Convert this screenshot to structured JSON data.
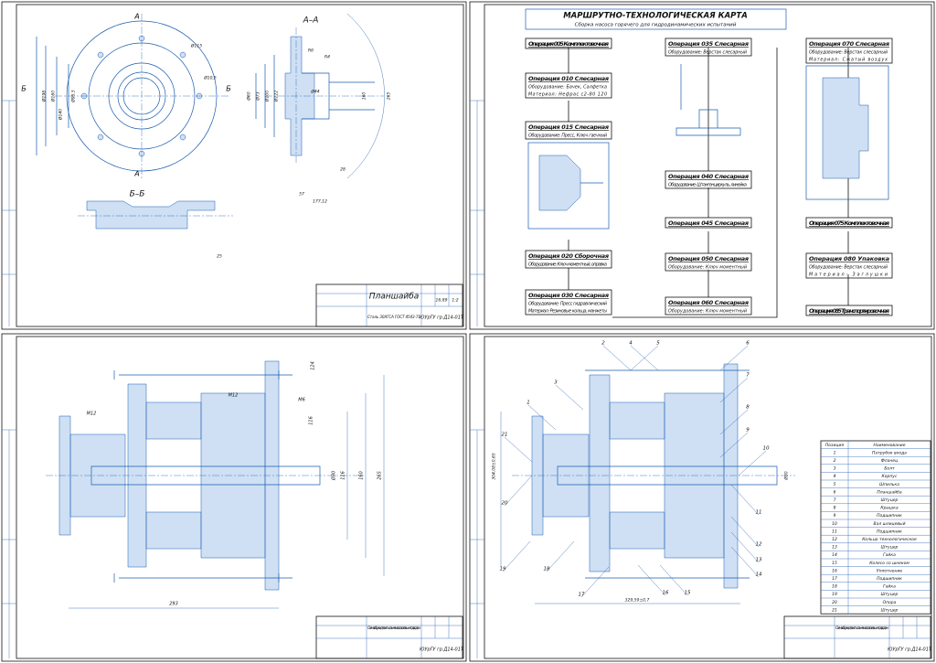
{
  "sheets": [
    {
      "section_labels": [
        "А",
        "А",
        "Б",
        "Б",
        "А–А",
        "Б–Б"
      ],
      "dimensions": [
        "Ø115",
        "Ø10,5",
        "Ø198",
        "Ø160",
        "Ø95,5",
        "Ø140",
        "R6",
        "R4",
        "Ø122",
        "Ø100",
        "Ø73",
        "Ø60",
        "Ø44",
        "160",
        "265",
        "177,12",
        "57",
        "28",
        "25"
      ],
      "title_block": {
        "name": "Планшайба",
        "material": "Сталь 30ХГСА  ГОСТ 4543-71",
        "code": "ЮУрГУ гр.Д14-01Т",
        "mass": "16,89",
        "scale": "1:2"
      }
    },
    {
      "title": "МАРШРУТНО-ТЕХНОЛОГИЧЕСКАЯ КАРТА",
      "subtitle": "Сборка насоса горячего для гидродинамических испытаний",
      "operations": [
        {
          "title": "Операция 005 Комплектовочная",
          "lines": []
        },
        {
          "title": "Операция 010 Слесарная",
          "lines": [
            "Оборудование: Бачек, Салфетка",
            "Материал: Нефрас с2-80 120"
          ]
        },
        {
          "title": "Операция 015 Слесарная",
          "lines": [
            "Оборудование: Пресс, Ключ гаечный"
          ]
        },
        {
          "title": "Операция 020 Сборочная",
          "lines": [
            "Оборудование: Ключ моментный, оправка"
          ]
        },
        {
          "title": "Операция 030 Слесарная",
          "lines": [
            "Оборудование: Пресс гидравлический",
            "Материал: Резиновые кольца, манжеты"
          ]
        },
        {
          "title": "Операция 035 Слесарная",
          "lines": [
            "Оборудование: Верстак слесарный"
          ]
        },
        {
          "title": "Операция 040 Слесарная",
          "lines": [
            "Оборудование: Штангенциркуль, линейка"
          ]
        },
        {
          "title": "Операция 045 Слесарная",
          "lines": []
        },
        {
          "title": "Операция 050 Слесарная",
          "lines": [
            "Оборудование: Ключ моментный"
          ]
        },
        {
          "title": "Операция 060 Слесарная",
          "lines": [
            "Оборудование: Ключ моментный"
          ]
        },
        {
          "title": "Операция 070 Слесарная",
          "lines": [
            "Оборудование: Верстак слесарный",
            "Материал: Сжатый воздух"
          ]
        },
        {
          "title": "Операция 075 Комплектовочная",
          "lines": []
        },
        {
          "title": "Операция 080 Упаковка",
          "lines": [
            "Оборудование: Верстак слесарный",
            "Материал: Заглушки"
          ]
        },
        {
          "title": "Операция 085 Транспортировочная",
          "lines": []
        }
      ]
    },
    {
      "dimensions": [
        "М12",
        "М12",
        "М6",
        "116",
        "Ø30",
        "116",
        "160",
        "265",
        "293",
        "124"
      ],
      "title_block": {
        "name": "Схема сборки для испытания насоса с осевым подводом",
        "code": "ЮУрГУ гр.Д14-01Т"
      }
    },
    {
      "callouts": [
        "1",
        "2",
        "3",
        "4",
        "5",
        "6",
        "7",
        "8",
        "9",
        "10",
        "11",
        "12",
        "13",
        "14",
        "15",
        "16",
        "17",
        "18",
        "19",
        "20",
        "21"
      ],
      "dimensions": [
        "Ø30",
        "329,59±0,7",
        "304,08±0,65"
      ],
      "parts_table": {
        "header": [
          "Позиция",
          "Наименование"
        ],
        "rows": [
          [
            1,
            "Патрубок входа"
          ],
          [
            2,
            "Фланец"
          ],
          [
            3,
            "Болт"
          ],
          [
            4,
            "Корпус"
          ],
          [
            5,
            "Шпилька"
          ],
          [
            6,
            "Планшайба"
          ],
          [
            7,
            "Штуцер"
          ],
          [
            8,
            "Крышка"
          ],
          [
            9,
            "Подшипник"
          ],
          [
            10,
            "Вал шлицевый"
          ],
          [
            11,
            "Подшипник"
          ],
          [
            12,
            "Кольцо технологическое"
          ],
          [
            13,
            "Штуцер"
          ],
          [
            14,
            "Гайка"
          ],
          [
            15,
            "Колесо со шнеком"
          ],
          [
            16,
            "Уплотнение"
          ],
          [
            17,
            "Подшипник"
          ],
          [
            18,
            "Гайка"
          ],
          [
            19,
            "Штуцер"
          ],
          [
            20,
            "Опора"
          ],
          [
            21,
            "Штуцер"
          ]
        ]
      },
      "title_block": {
        "name": "Схема сборки для испытания насоса с осевым подводом",
        "code": "ЮУрГУ гр.Д14-01Т"
      }
    }
  ]
}
